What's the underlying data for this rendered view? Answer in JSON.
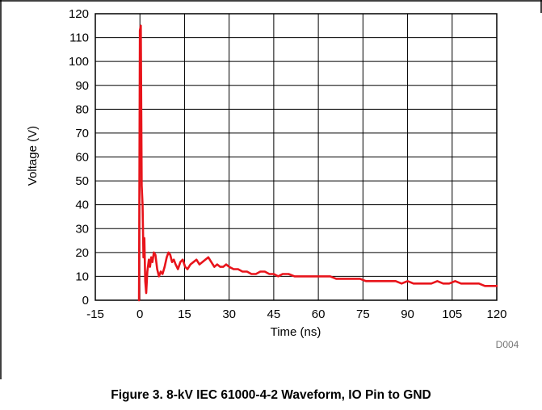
{
  "figure": {
    "caption": "Figure 3. 8-kV IEC 61000-4-2 Waveform, IO Pin to GND",
    "tag": "D004"
  },
  "colors": {
    "series": "#e8141b",
    "grid": "#000000",
    "frame": "#000000"
  },
  "chart_data": {
    "type": "line",
    "title": "",
    "xlabel": "Time (ns)",
    "ylabel": "Voltage (V)",
    "xlim": [
      -15,
      120
    ],
    "ylim": [
      0,
      120
    ],
    "xticks": [
      -15,
      0,
      15,
      30,
      45,
      60,
      75,
      90,
      105,
      120
    ],
    "yticks": [
      0,
      10,
      20,
      30,
      40,
      50,
      60,
      70,
      80,
      90,
      100,
      110,
      120
    ],
    "grid": true,
    "series": [
      {
        "x": [
          -0.3,
          0.0,
          0.3,
          0.6,
          0.9,
          1.2,
          1.5,
          1.8,
          2.1,
          2.5,
          3.0,
          3.4,
          3.8,
          4.2,
          4.7,
          5.2,
          5.8,
          6.4,
          7.0,
          7.6,
          8.3,
          9.0,
          9.6,
          10.2,
          10.8,
          11.4,
          12.0,
          12.8,
          13.6,
          14.4,
          15.2,
          16.0,
          17.0,
          18.0,
          19.0,
          20.0,
          21.0,
          22.0,
          23.0,
          24.0,
          25.0,
          26.0,
          27.0,
          28.0,
          29.0,
          30.0,
          31.5,
          33.0,
          34.5,
          36.0,
          37.5,
          39.0,
          40.5,
          42.0,
          43.5,
          45.0,
          46.5,
          48.0,
          50.0,
          52.0,
          54.0,
          56.0,
          58.0,
          60.0,
          62.0,
          64.0,
          66.0,
          68.0,
          70.0,
          72.0,
          74.0,
          76.0,
          78.0,
          80.0,
          82.0,
          84.0,
          86.0,
          88.0,
          90.0,
          92.0,
          94.0,
          96.0,
          98.0,
          100.0,
          102.0,
          104.0,
          106.0,
          108.0,
          110.0,
          112.0,
          114.0,
          116.0,
          118.0,
          120.0
        ],
        "y": [
          0,
          113,
          115,
          48,
          40,
          18,
          26,
          8,
          3,
          12,
          17,
          14,
          18,
          16,
          20,
          19,
          13,
          10,
          12,
          11,
          14,
          18,
          20,
          19,
          16,
          17,
          15,
          13,
          16,
          17,
          14,
          13,
          15,
          16,
          17,
          15,
          16,
          17,
          18,
          16,
          14,
          15,
          14,
          14,
          15,
          14,
          13,
          13,
          12,
          12,
          11,
          11,
          12,
          12,
          11,
          11,
          10,
          11,
          11,
          10,
          10,
          10,
          10,
          10,
          10,
          10,
          9,
          9,
          9,
          9,
          9,
          8,
          8,
          8,
          8,
          8,
          8,
          7,
          8,
          7,
          7,
          7,
          7,
          8,
          7,
          7,
          8,
          7,
          7,
          7,
          7,
          6,
          6,
          6
        ]
      }
    ]
  }
}
